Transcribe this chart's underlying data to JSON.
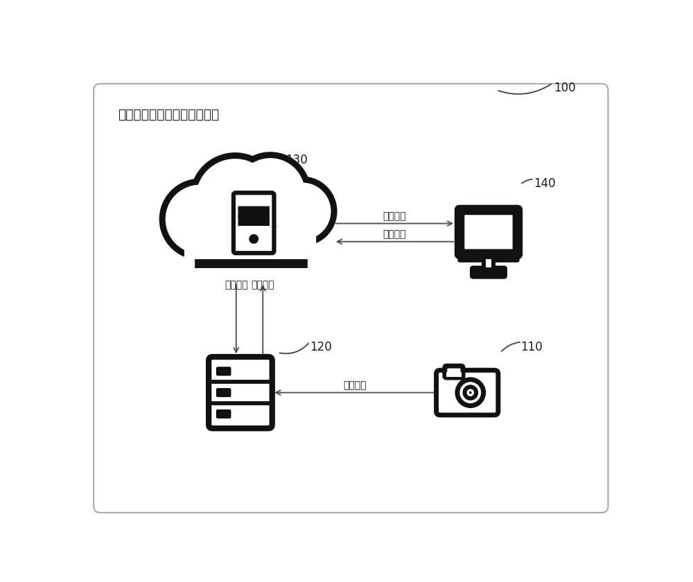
{
  "title": "基于边缘计算的船舶定位系统",
  "label_100": "100",
  "label_110": "110",
  "label_120": "120",
  "label_130": "130",
  "label_140": "140",
  "arrow_upload_h": "数据上传",
  "arrow_command_h": "命令下发",
  "arrow_upload_v": "数据上传",
  "arrow_command_v": "命令下发",
  "arrow_upload_cam": "数据上传",
  "bg_color": "#ffffff",
  "border_color": "#555555",
  "icon_color": "#111111",
  "text_color": "#1a1a1a",
  "arrow_color": "#555555"
}
